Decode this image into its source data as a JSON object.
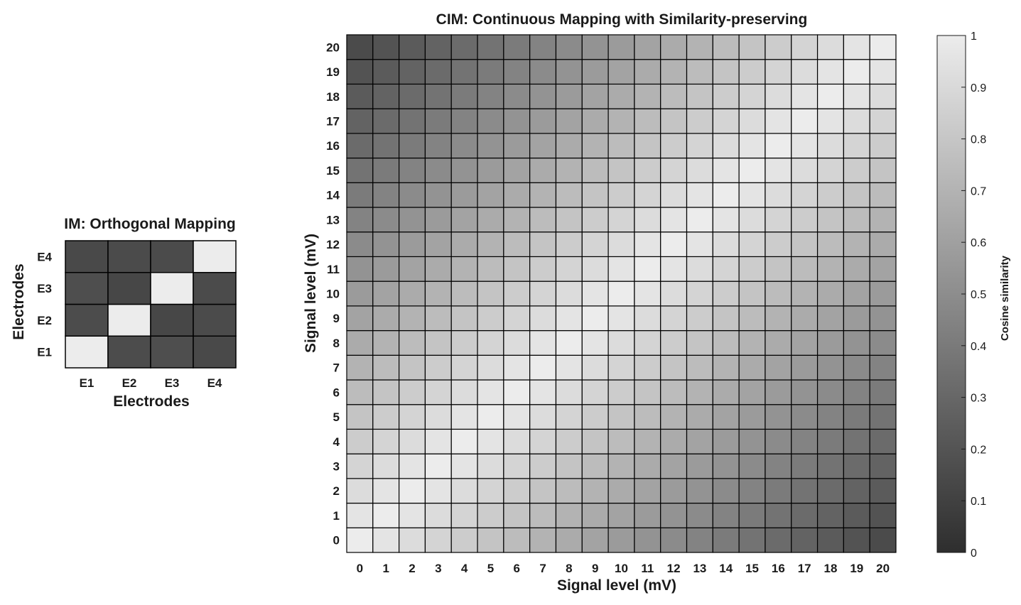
{
  "chart_data": [
    {
      "type": "heatmap",
      "title": "IM: Orthogonal Mapping",
      "xlabel": "Electrodes",
      "ylabel": "Electrodes",
      "x_categories": [
        "E1",
        "E2",
        "E3",
        "E4"
      ],
      "y_categories": [
        "E1",
        "E2",
        "E3",
        "E4"
      ],
      "values": [
        [
          1.0,
          0.16,
          0.17,
          0.14
        ],
        [
          0.16,
          1.0,
          0.13,
          0.15
        ],
        [
          0.17,
          0.13,
          1.0,
          0.15
        ],
        [
          0.14,
          0.15,
          0.15,
          1.0
        ]
      ],
      "colormap": "gray",
      "clim": [
        0,
        1
      ]
    },
    {
      "type": "heatmap",
      "title": "CIM: Continuous Mapping with Similarity-preserving",
      "xlabel": "Signal level (mV)",
      "ylabel": "Signal level (mV)",
      "x_categories": [
        "0",
        "1",
        "2",
        "3",
        "4",
        "5",
        "6",
        "7",
        "8",
        "9",
        "10",
        "11",
        "12",
        "13",
        "14",
        "15",
        "16",
        "17",
        "18",
        "19",
        "20"
      ],
      "y_categories": [
        "0",
        "1",
        "2",
        "3",
        "4",
        "5",
        "6",
        "7",
        "8",
        "9",
        "10",
        "11",
        "12",
        "13",
        "14",
        "15",
        "16",
        "17",
        "18",
        "19",
        "20"
      ],
      "value_rule": "similarity(i,j) = 1 - 0.85 * |i - j| / 20",
      "diagonal": 1.0,
      "min_value": 0.15,
      "colormap": "gray",
      "clim": [
        0,
        1
      ]
    }
  ],
  "colorbar": {
    "label": "Cosine similarity",
    "ticks": [
      "0",
      "0.1",
      "0.2",
      "0.3",
      "0.4",
      "0.5",
      "0.6",
      "0.7",
      "0.8",
      "0.9",
      "1"
    ],
    "range": [
      0,
      1
    ],
    "low_color": "#2e2e2e",
    "high_color": "#ececec"
  }
}
